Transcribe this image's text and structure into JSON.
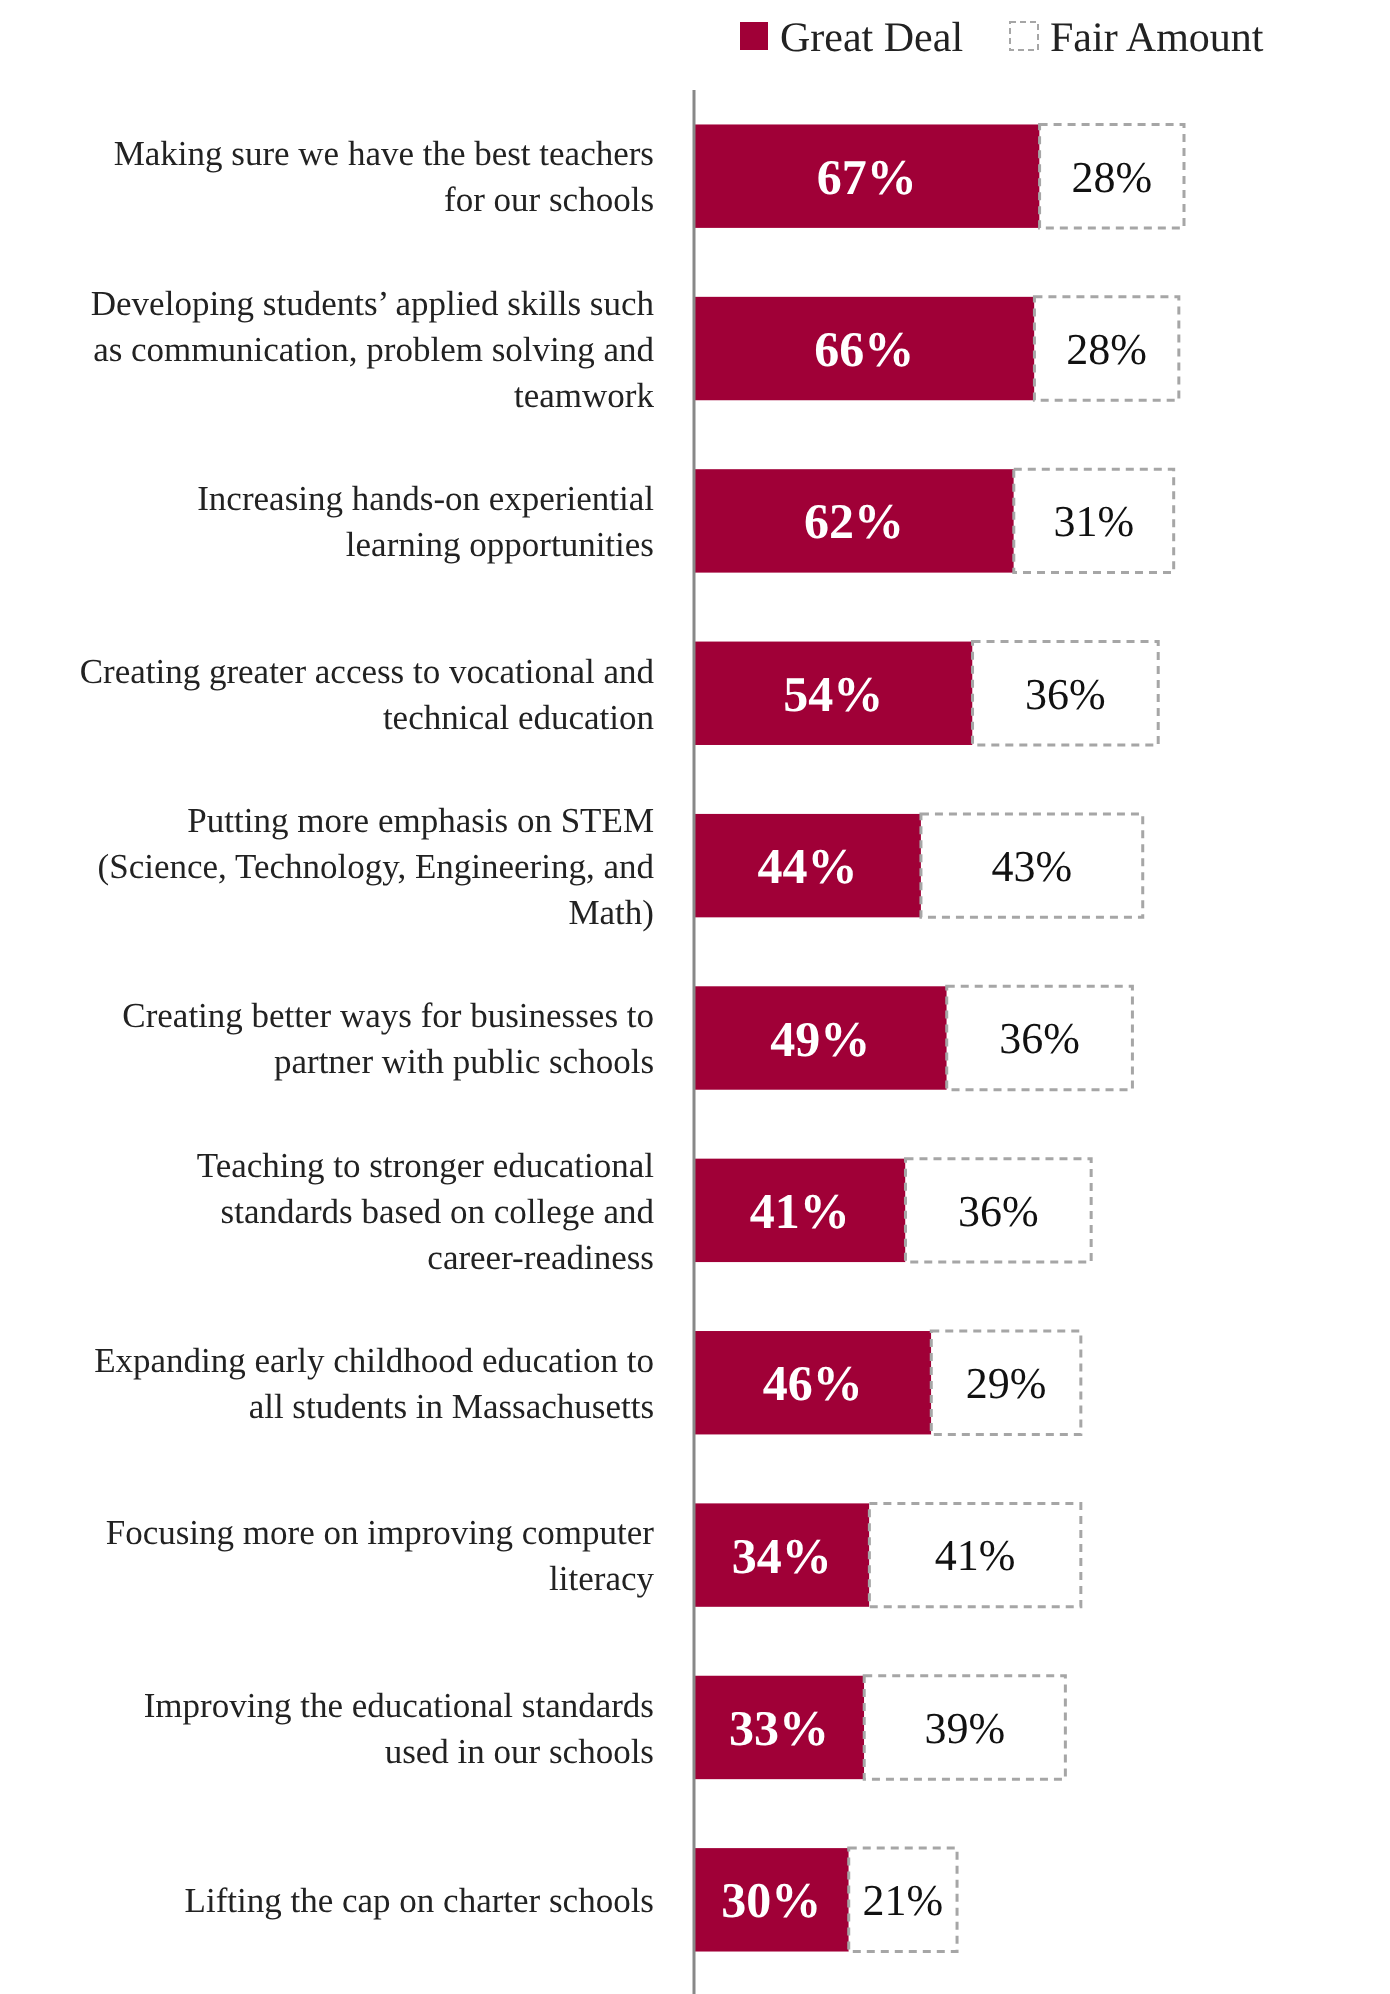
{
  "chart_data": {
    "type": "bar",
    "orientation": "horizontal",
    "stacked": true,
    "legend": "top right",
    "categories": [
      "Making sure we have the best teachers for our schools",
      "Developing students’ applied skills such as communication, problem solving and teamwork",
      "Increasing hands-on experiential learning opportunities",
      "Creating greater access to vocational and technical education",
      "Putting more emphasis on STEM (Science, Technology, Engineering, and Math)",
      "Creating better ways for businesses to partner with public schools",
      "Teaching to stronger educational standards based on college and career-readiness",
      "Expanding early childhood education to all students in Massachusetts",
      "Focusing more on improving computer literacy",
      "Improving the educational standards used in our schools",
      "Lifting the cap on charter schools"
    ],
    "series": [
      {
        "name": "Great Deal",
        "color": "#a00037",
        "values": [
          67,
          66,
          62,
          54,
          44,
          49,
          41,
          46,
          34,
          33,
          30
        ],
        "value_labels": [
          "67%",
          "66%",
          "62%",
          "54%",
          "44%",
          "49%",
          "41%",
          "46%",
          "34%",
          "33%",
          "30%"
        ]
      },
      {
        "name": "Fair Amount",
        "color": "#ffffff",
        "values": [
          28,
          28,
          31,
          36,
          43,
          36,
          36,
          29,
          41,
          39,
          21
        ],
        "value_labels": [
          "28%",
          "28%",
          "31%",
          "36%",
          "43%",
          "36%",
          "36%",
          "29%",
          "41%",
          "39%",
          "21%"
        ]
      }
    ]
  }
}
